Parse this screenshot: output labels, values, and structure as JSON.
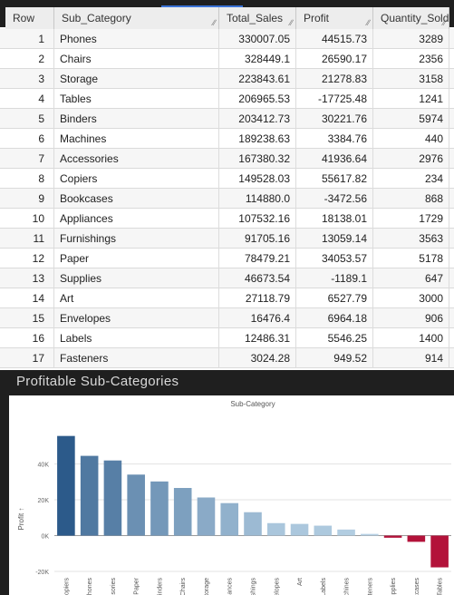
{
  "table": {
    "columns": [
      {
        "key": "row",
        "label": "Row"
      },
      {
        "key": "sub_category",
        "label": "Sub_Category"
      },
      {
        "key": "total_sales",
        "label": "Total_Sales"
      },
      {
        "key": "profit",
        "label": "Profit"
      },
      {
        "key": "quantity_sold",
        "label": "Quantity_Sold"
      }
    ],
    "rows": [
      [
        "1",
        "Phones",
        "330007.05",
        "44515.73",
        "3289"
      ],
      [
        "2",
        "Chairs",
        "328449.1",
        "26590.17",
        "2356"
      ],
      [
        "3",
        "Storage",
        "223843.61",
        "21278.83",
        "3158"
      ],
      [
        "4",
        "Tables",
        "206965.53",
        "-17725.48",
        "1241"
      ],
      [
        "5",
        "Binders",
        "203412.73",
        "30221.76",
        "5974"
      ],
      [
        "6",
        "Machines",
        "189238.63",
        "3384.76",
        "440"
      ],
      [
        "7",
        "Accessories",
        "167380.32",
        "41936.64",
        "2976"
      ],
      [
        "8",
        "Copiers",
        "149528.03",
        "55617.82",
        "234"
      ],
      [
        "9",
        "Bookcases",
        "114880.0",
        "-3472.56",
        "868"
      ],
      [
        "10",
        "Appliances",
        "107532.16",
        "18138.01",
        "1729"
      ],
      [
        "11",
        "Furnishings",
        "91705.16",
        "13059.14",
        "3563"
      ],
      [
        "12",
        "Paper",
        "78479.21",
        "34053.57",
        "5178"
      ],
      [
        "13",
        "Supplies",
        "46673.54",
        "-1189.1",
        "647"
      ],
      [
        "14",
        "Art",
        "27118.79",
        "6527.79",
        "3000"
      ],
      [
        "15",
        "Envelopes",
        "16476.4",
        "6964.18",
        "906"
      ],
      [
        "16",
        "Labels",
        "12486.31",
        "5546.25",
        "1400"
      ],
      [
        "17",
        "Fasteners",
        "3024.28",
        "949.52",
        "914"
      ]
    ]
  },
  "chart_title": "Profitable Sub-Categories",
  "chart_data": {
    "type": "bar",
    "title": "Sub-Category",
    "xlabel": "",
    "ylabel": "Profit",
    "ylabel_suffix": "↑",
    "categories": [
      "Copiers",
      "Phones",
      "Accessories",
      "Paper",
      "Binders",
      "Chairs",
      "Storage",
      "Appliances",
      "Furnishings",
      "Envelopes",
      "Art",
      "Labels",
      "Machines",
      "Fasteners",
      "Supplies",
      "Bookcases",
      "Tables"
    ],
    "values": [
      55617.82,
      44515.73,
      41936.64,
      34053.57,
      30221.76,
      26590.17,
      21278.83,
      18138.01,
      13059.14,
      6964.18,
      6527.79,
      5546.25,
      3384.76,
      949.52,
      -1189.1,
      -3472.56,
      -17725.48
    ],
    "ylim": [
      -21000,
      60000
    ],
    "yticks": [
      -20000,
      0,
      20000,
      40000
    ],
    "ytick_labels": [
      "-20K",
      "0K",
      "20K",
      "40K"
    ],
    "color_scale": {
      "max_color": "#2c5a8a",
      "min_positive_color": "#b9d3e6",
      "negative_color": "#b3123a"
    },
    "grid": true,
    "legend": "none"
  }
}
